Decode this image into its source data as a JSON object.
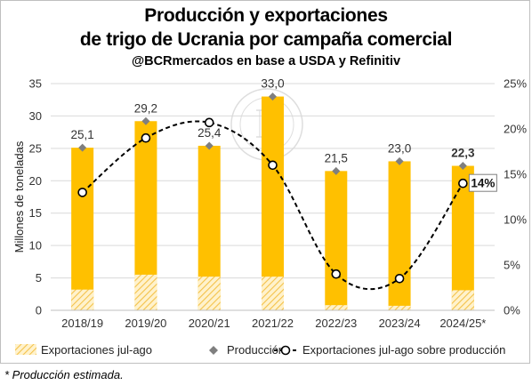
{
  "title_line1": "Producción y exportaciones",
  "title_line2": "de trigo de Ucrania por campaña comercial",
  "subtitle": "@BCRmercados en base a USDA y Refinitiv",
  "footnote": "* Producción estimada.",
  "watermark": "BOLSA DE COMERCIO DE ROSARIO",
  "colors": {
    "production_bar": "#FFC000",
    "exports_hatch": "#FFE699",
    "production_marker": "#7F7F7F",
    "ratio_line": "#000000",
    "gridline": "#D9D9D9"
  },
  "chart_data": {
    "type": "bar",
    "categories": [
      "2018/19",
      "2019/20",
      "2020/21",
      "2021/22",
      "2022/23",
      "2023/24",
      "2024/25*"
    ],
    "series": [
      {
        "name": "Exportaciones jul-ago",
        "type": "bar",
        "values": [
          3.2,
          5.5,
          5.2,
          5.2,
          0.8,
          0.7,
          3.1
        ]
      },
      {
        "name": "Producción",
        "type": "bar-marker",
        "values": [
          25.1,
          29.2,
          25.4,
          33.0,
          21.5,
          23.0,
          22.3
        ]
      },
      {
        "name": "Exportaciones jul-ago sobre producción",
        "type": "line",
        "axis": "right",
        "values": [
          0.13,
          0.19,
          0.207,
          0.16,
          0.04,
          0.035,
          0.14
        ]
      }
    ],
    "data_labels": [
      "25,1",
      "29,2",
      "25,4",
      "33,0",
      "21,5",
      "23,0",
      "22,3"
    ],
    "ratio_label": "14%",
    "ylabel": "Millones de toneladas",
    "ylim": [
      0,
      35
    ],
    "y_ticks": [
      "0",
      "5",
      "10",
      "15",
      "20",
      "25",
      "30",
      "35"
    ],
    "y2lim": [
      0,
      0.25
    ],
    "y2_ticks": [
      "0%",
      "5%",
      "10%",
      "15%",
      "20%",
      "25%"
    ],
    "grid": true,
    "legend_position": "bottom"
  }
}
